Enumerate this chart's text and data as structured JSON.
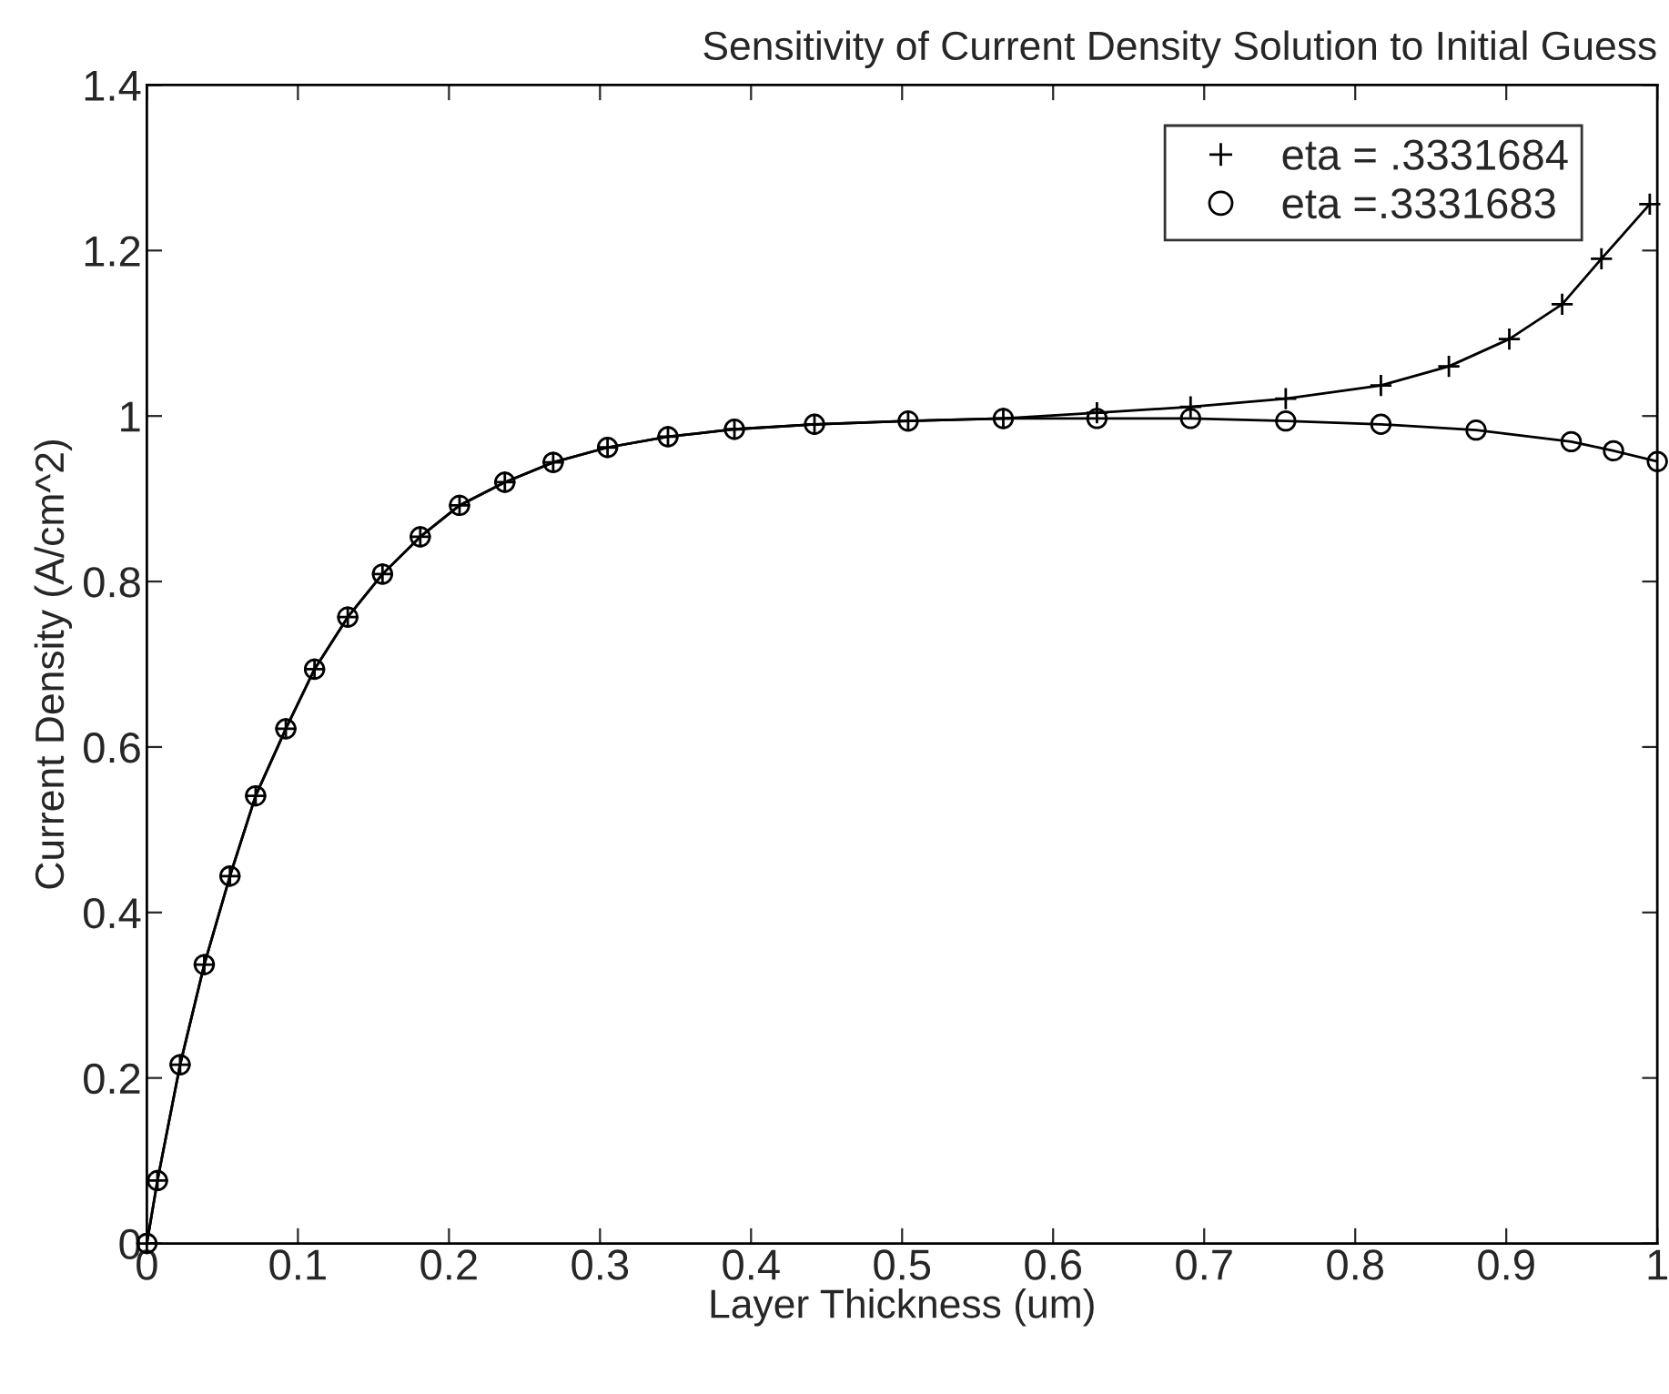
{
  "chart_data": {
    "type": "line",
    "title": "Sensitivity of Current Density Solution to Initial Guess",
    "xlabel": "Layer Thickness (um)",
    "ylabel": "Current Density (A/cm^2)",
    "series": [
      {
        "name": "eta = .3331684",
        "color": "#000000",
        "marker": "cross",
        "x": [
          0,
          0.007,
          0.022,
          0.038,
          0.055,
          0.072,
          0.092,
          0.111,
          0.133,
          0.156,
          0.181,
          0.207,
          0.237,
          0.269,
          0.305,
          0.345,
          0.389,
          0.442,
          0.504,
          0.567,
          0.629,
          0.691,
          0.754,
          0.817,
          0.862,
          0.902,
          0.937,
          0.963,
          0.995
        ],
        "values": [
          0,
          0.076,
          0.216,
          0.337,
          0.444,
          0.541,
          0.622,
          0.694,
          0.757,
          0.809,
          0.854,
          0.892,
          0.92,
          0.944,
          0.962,
          0.975,
          0.984,
          0.99,
          0.994,
          0.997,
          1.004,
          1.011,
          1.021,
          1.037,
          1.06,
          1.093,
          1.135,
          1.19,
          1.256
        ]
      },
      {
        "name": "eta =.3331683",
        "color": "#000000",
        "marker": "circle",
        "x": [
          0,
          0.007,
          0.022,
          0.038,
          0.055,
          0.072,
          0.092,
          0.111,
          0.133,
          0.156,
          0.181,
          0.207,
          0.237,
          0.269,
          0.305,
          0.345,
          0.389,
          0.442,
          0.504,
          0.567,
          0.629,
          0.691,
          0.754,
          0.817,
          0.88,
          0.943,
          0.971,
          1.0
        ],
        "values": [
          0,
          0.076,
          0.216,
          0.337,
          0.444,
          0.541,
          0.622,
          0.694,
          0.757,
          0.809,
          0.854,
          0.892,
          0.92,
          0.944,
          0.962,
          0.975,
          0.984,
          0.99,
          0.994,
          0.997,
          0.997,
          0.997,
          0.994,
          0.99,
          0.983,
          0.969,
          0.958,
          0.945
        ]
      }
    ],
    "xlim": [
      0,
      1
    ],
    "xticks": [
      0,
      0.1,
      0.2,
      0.3,
      0.4,
      0.5,
      0.6,
      0.7,
      0.8,
      0.9,
      1
    ],
    "ylim": [
      0,
      1.4
    ],
    "yticks": [
      0,
      0.2,
      0.4,
      0.6,
      0.8,
      1,
      1.2,
      1.4
    ],
    "grid": false,
    "legend": "top right",
    "line_style": "solid"
  }
}
